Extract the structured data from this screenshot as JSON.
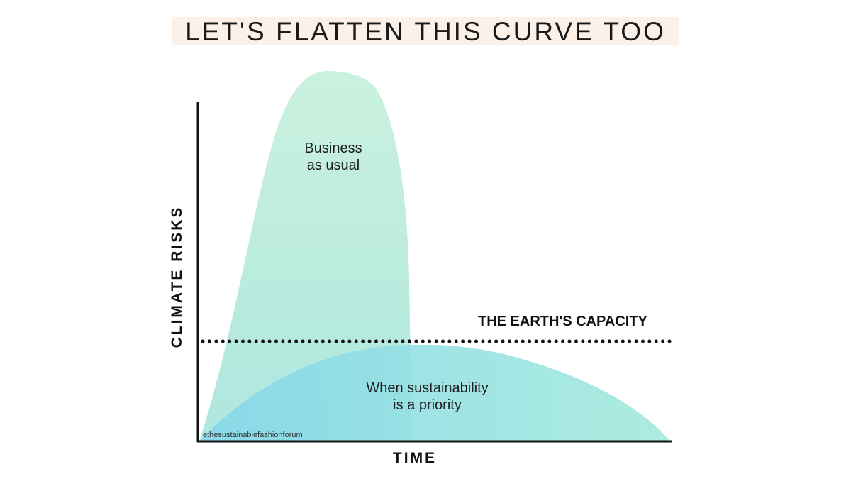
{
  "title": "LET'S FLATTEN THIS CURVE TOO",
  "y_axis_label": "CLIMATE RISKS",
  "x_axis_label": "TIME",
  "threshold_label": "THE EARTH'S CAPACITY",
  "curves": {
    "business_as_usual": [
      "Business",
      "as usual"
    ],
    "sustainability": [
      "When sustainability",
      "is a priority"
    ]
  },
  "credit": "ethesustainablefashionforum",
  "colors": {
    "bau_top": "#c8f0dc",
    "bau_bottom": "#a9e6dd",
    "sust_left": "#86d7ea",
    "sust_right": "#a3eadb",
    "axis": "#111111",
    "title_highlight": "#fbf1e8"
  }
}
